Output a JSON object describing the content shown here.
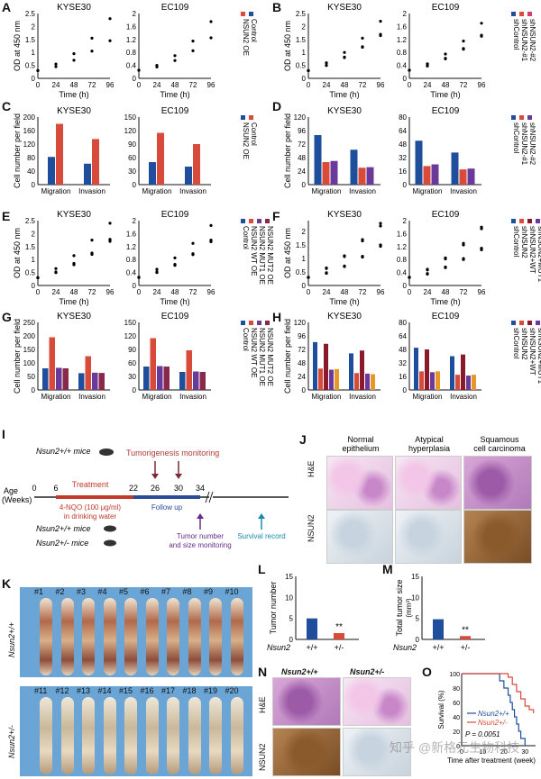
{
  "panels": {
    "A": {
      "letter": "A",
      "left_title": "KYSE30",
      "right_title": "EC109",
      "ylabel": "OD at 450 nm",
      "xlabel": "Time (h)",
      "legend": [
        "NSUN2 OE",
        "Control"
      ],
      "sig": "***"
    },
    "B": {
      "letter": "B",
      "left_title": "KYSE30",
      "right_title": "EC109",
      "ylabel": "OD at 450 nm",
      "xlabel": "Time (h)",
      "legend": [
        "shControl",
        "shNSUN2-#1",
        "shNSUN2-#2"
      ],
      "sig": "***"
    },
    "C": {
      "letter": "C",
      "left_title": "KYSE30",
      "right_title": "EC109",
      "ylabel": "Cell number per field",
      "legend": [
        "NSUN2 OE",
        "Control"
      ],
      "sig": "***"
    },
    "D": {
      "letter": "D",
      "left_title": "KYSE30",
      "right_title": "EC109",
      "ylabel": "Cell number per field",
      "legend": [
        "shControl",
        "shNSUN2-#1",
        "shNSUN2-#2"
      ],
      "sig": "**"
    },
    "E": {
      "letter": "E",
      "left_title": "KYSE30",
      "right_title": "EC109",
      "ylabel": "OD at 450 nm",
      "xlabel": "Time (h)",
      "legend": [
        "Control",
        "NSUN2 WT OE",
        "NSUN2 MUT1 OE",
        "NSUN2 MUT2 OE"
      ],
      "sig": "***"
    },
    "F": {
      "letter": "F",
      "left_title": "KYSE30",
      "right_title": "EC109",
      "ylabel": "OD at 450 nm",
      "xlabel": "Time (h)",
      "legend": [
        "shControl",
        "shNSUN2",
        "shNSUN2+WT",
        "shNSUN2+MUT1",
        "shNSUN2+MUT2"
      ],
      "sig": "***"
    },
    "G": {
      "letter": "G",
      "left_title": "KYSE30",
      "right_title": "EC109",
      "ylabel": "Cell number per field",
      "legend": [
        "Control",
        "NSUN2 WT OE",
        "NSUN2 MUT1 OE",
        "NSUN2 MUT2 OE"
      ],
      "sig": "***"
    },
    "H": {
      "letter": "H",
      "left_title": "KYSE30",
      "right_title": "EC109",
      "ylabel": "Cell number per field",
      "legend": [
        "shControl",
        "shNSUN2",
        "shNSUN2+WT",
        "shNSUN2+MUT1",
        "shNSUN2+MUT2"
      ],
      "sig1": "**",
      "sig2": "***"
    },
    "I": {
      "letter": "I",
      "mice_label": "Nsun2+/+ mice",
      "tumorigenesis": "Tumorigenesis monitoring",
      "age_label": "Age",
      "age_unit": "(Weeks)",
      "ticks": [
        "0",
        "6",
        "22",
        "26",
        "30",
        "34"
      ],
      "treatment": "Treatment",
      "nqo": "4-NQO (100 μg/ml)",
      "nqo2": "in drinking water",
      "follow_up": "Follow up",
      "mice_wt": "Nsun2+/+ mice",
      "mice_het": "Nsun2+/- mice",
      "tumor_monitor": "Tumor number",
      "tumor_monitor2": "and size monitoring",
      "survival": "Survival record"
    },
    "J": {
      "letter": "J",
      "cols": [
        "Normal",
        "epithelium",
        "Atypical",
        "hyperplasia",
        "Squamous",
        "cell carcinoma"
      ],
      "rows": [
        "H&E",
        "NSUN2"
      ]
    },
    "K": {
      "letter": "K",
      "row1_label": "Nsun2+/+",
      "row2_label": "Nsun2+/-",
      "row1": [
        "#1",
        "#2",
        "#3",
        "#4",
        "#5",
        "#6",
        "#7",
        "#8",
        "#9",
        "#10"
      ],
      "row2": [
        "#11",
        "#12",
        "#13",
        "#14",
        "#15",
        "#16",
        "#17",
        "#18",
        "#19",
        "#20"
      ]
    },
    "L": {
      "letter": "L",
      "ylabel": "Tumor number",
      "genotype": "Nsun2",
      "groups": [
        "+/+",
        "+/-"
      ],
      "sig": "**"
    },
    "M": {
      "letter": "M",
      "ylabel": "Total tumor size",
      "yunit": "(mm³)",
      "genotype": "Nsun2",
      "groups": [
        "+/+",
        "+/-"
      ],
      "sig": "**"
    },
    "N": {
      "letter": "N",
      "cols": [
        "Nsun2+/+",
        "Nsun2+/-"
      ],
      "rows": [
        "H&E",
        "NSUN2"
      ]
    },
    "O": {
      "letter": "O",
      "ylabel": "Survival (%)",
      "xlabel": "Time after treatment (week)",
      "legend": [
        "Nsun2+/+",
        "Nsun2+/-"
      ],
      "pvalue": "P = 0.0051",
      "ticks": [
        "0",
        "10",
        "20",
        "30"
      ],
      "yticks": [
        "0",
        "20",
        "40",
        "60",
        "80",
        "100"
      ]
    }
  },
  "watermark": "知乎 @新格元生物科技",
  "chart_data": [
    {
      "panel": "A",
      "type": "line",
      "title": "KYSE30",
      "x": [
        0,
        24,
        48,
        72,
        96
      ],
      "xlabel": "Time (h)",
      "ylabel": "OD at 450 nm",
      "ylim": [
        0,
        2.5
      ],
      "series": [
        {
          "name": "NSUN2 OE",
          "values": [
            0.3,
            0.55,
            0.95,
            1.55,
            2.3
          ]
        },
        {
          "name": "Control",
          "values": [
            0.3,
            0.45,
            0.7,
            1.05,
            1.45
          ]
        }
      ]
    },
    {
      "panel": "A",
      "type": "line",
      "title": "EC109",
      "x": [
        0,
        24,
        48,
        72,
        96
      ],
      "xlabel": "Time (h)",
      "ylabel": "OD at 450 nm",
      "ylim": [
        0,
        2
      ],
      "series": [
        {
          "name": "NSUN2 OE",
          "values": [
            0.25,
            0.4,
            0.7,
            1.15,
            1.75
          ]
        },
        {
          "name": "Control",
          "values": [
            0.25,
            0.35,
            0.55,
            0.85,
            1.25
          ]
        }
      ]
    },
    {
      "panel": "B",
      "type": "line",
      "title": "KYSE30",
      "x": [
        0,
        24,
        48,
        72,
        96
      ],
      "ylim": [
        0,
        2.5
      ],
      "series": [
        {
          "name": "shControl",
          "values": [
            0.3,
            0.6,
            1.0,
            1.55,
            2.2
          ]
        },
        {
          "name": "shNSUN2-#1",
          "values": [
            0.3,
            0.5,
            0.8,
            1.2,
            1.65
          ]
        },
        {
          "name": "shNSUN2-#2",
          "values": [
            0.3,
            0.5,
            0.82,
            1.22,
            1.7
          ]
        }
      ]
    },
    {
      "panel": "B",
      "type": "line",
      "title": "EC109",
      "x": [
        0,
        24,
        48,
        72,
        96
      ],
      "ylim": [
        0,
        2
      ],
      "series": [
        {
          "name": "shControl",
          "values": [
            0.25,
            0.45,
            0.75,
            1.15,
            1.7
          ]
        },
        {
          "name": "shNSUN2-#1",
          "values": [
            0.25,
            0.38,
            0.6,
            0.9,
            1.3
          ]
        },
        {
          "name": "shNSUN2-#2",
          "values": [
            0.25,
            0.4,
            0.62,
            0.92,
            1.33
          ]
        }
      ]
    },
    {
      "panel": "C",
      "type": "bar",
      "title": "KYSE30",
      "categories": [
        "Migration",
        "Invasion"
      ],
      "ylim": [
        0,
        200
      ],
      "series": [
        {
          "name": "Control",
          "values": [
            82,
            62
          ]
        },
        {
          "name": "NSUN2 OE",
          "values": [
            180,
            135
          ]
        }
      ]
    },
    {
      "panel": "C",
      "type": "bar",
      "title": "EC109",
      "categories": [
        "Migration",
        "Invasion"
      ],
      "ylim": [
        0,
        150
      ],
      "series": [
        {
          "name": "Control",
          "values": [
            50,
            40
          ]
        },
        {
          "name": "NSUN2 OE",
          "values": [
            115,
            90
          ]
        }
      ]
    },
    {
      "panel": "D",
      "type": "bar",
      "title": "KYSE30",
      "categories": [
        "Migration",
        "Invasion"
      ],
      "ylim": [
        0,
        120
      ],
      "series": [
        {
          "name": "shControl",
          "values": [
            88,
            62
          ]
        },
        {
          "name": "shNSUN2-#1",
          "values": [
            40,
            30
          ]
        },
        {
          "name": "shNSUN2-#2",
          "values": [
            42,
            31
          ]
        }
      ]
    },
    {
      "panel": "D",
      "type": "bar",
      "title": "EC109",
      "categories": [
        "Migration",
        "Invasion"
      ],
      "ylim": [
        0,
        80
      ],
      "series": [
        {
          "name": "shControl",
          "values": [
            52,
            38
          ]
        },
        {
          "name": "shNSUN2-#1",
          "values": [
            22,
            18
          ]
        },
        {
          "name": "shNSUN2-#2",
          "values": [
            24,
            19
          ]
        }
      ]
    },
    {
      "panel": "E",
      "type": "line",
      "title": "KYSE30",
      "x": [
        0,
        24,
        48,
        72,
        96
      ],
      "ylim": [
        0,
        2.5
      ],
      "series": [
        {
          "name": "Control",
          "values": [
            0.3,
            0.5,
            0.8,
            1.2,
            1.7
          ]
        },
        {
          "name": "NSUN2 WT OE",
          "values": [
            0.3,
            0.65,
            1.15,
            1.75,
            2.4
          ]
        },
        {
          "name": "NSUN2 MUT1 OE",
          "values": [
            0.3,
            0.52,
            0.85,
            1.25,
            1.78
          ]
        },
        {
          "name": "NSUN2 MUT2 OE",
          "values": [
            0.3,
            0.5,
            0.82,
            1.22,
            1.75
          ]
        }
      ]
    },
    {
      "panel": "E",
      "type": "line",
      "title": "EC109",
      "x": [
        0,
        24,
        48,
        72,
        96
      ],
      "ylim": [
        0,
        2
      ],
      "series": [
        {
          "name": "Control",
          "values": [
            0.25,
            0.4,
            0.62,
            0.95,
            1.35
          ]
        },
        {
          "name": "NSUN2 WT OE",
          "values": [
            0.25,
            0.5,
            0.85,
            1.3,
            1.85
          ]
        },
        {
          "name": "NSUN2 MUT1 OE",
          "values": [
            0.25,
            0.42,
            0.65,
            0.98,
            1.4
          ]
        },
        {
          "name": "NSUN2 MUT2 OE",
          "values": [
            0.25,
            0.41,
            0.63,
            0.97,
            1.38
          ]
        }
      ]
    },
    {
      "panel": "F",
      "type": "line",
      "title": "KYSE30",
      "x": [
        0,
        24,
        48,
        72,
        96
      ],
      "ylim": [
        0,
        2.4
      ],
      "series": [
        {
          "name": "shControl",
          "values": [
            0.3,
            0.65,
            1.1,
            1.7,
            2.3
          ]
        },
        {
          "name": "shNSUN2",
          "values": [
            0.3,
            0.45,
            0.7,
            1.05,
            1.45
          ]
        },
        {
          "name": "shNSUN2+WT",
          "values": [
            0.3,
            0.63,
            1.07,
            1.65,
            2.2
          ]
        },
        {
          "name": "shNSUN2+MUT1",
          "values": [
            0.3,
            0.47,
            0.72,
            1.08,
            1.5
          ]
        },
        {
          "name": "shNSUN2+MUT2",
          "values": [
            0.3,
            0.46,
            0.71,
            1.06,
            1.48
          ]
        }
      ]
    },
    {
      "panel": "F",
      "type": "line",
      "title": "EC109",
      "x": [
        0,
        24,
        48,
        72,
        96
      ],
      "ylim": [
        0,
        2
      ],
      "series": [
        {
          "name": "shControl",
          "values": [
            0.25,
            0.5,
            0.85,
            1.3,
            1.8
          ]
        },
        {
          "name": "shNSUN2",
          "values": [
            0.25,
            0.35,
            0.55,
            0.8,
            1.1
          ]
        },
        {
          "name": "shNSUN2+WT",
          "values": [
            0.25,
            0.48,
            0.82,
            1.25,
            1.75
          ]
        },
        {
          "name": "shNSUN2+MUT1",
          "values": [
            0.25,
            0.37,
            0.57,
            0.83,
            1.15
          ]
        },
        {
          "name": "shNSUN2+MUT2",
          "values": [
            0.25,
            0.36,
            0.56,
            0.82,
            1.13
          ]
        }
      ]
    },
    {
      "panel": "G",
      "type": "bar",
      "title": "KYSE30",
      "categories": [
        "Migration",
        "Invasion"
      ],
      "ylim": [
        0,
        250
      ],
      "series": [
        {
          "name": "Control",
          "values": [
            80,
            62
          ]
        },
        {
          "name": "NSUN2 WT OE",
          "values": [
            195,
            125
          ]
        },
        {
          "name": "NSUN2 MUT1 OE",
          "values": [
            82,
            64
          ]
        },
        {
          "name": "NSUN2 MUT2 OE",
          "values": [
            80,
            63
          ]
        }
      ]
    },
    {
      "panel": "G",
      "type": "bar",
      "title": "EC109",
      "categories": [
        "Migration",
        "Invasion"
      ],
      "ylim": [
        0,
        150
      ],
      "series": [
        {
          "name": "Control",
          "values": [
            52,
            40
          ]
        },
        {
          "name": "NSUN2 WT OE",
          "values": [
            115,
            88
          ]
        },
        {
          "name": "NSUN2 MUT1 OE",
          "values": [
            53,
            41
          ]
        },
        {
          "name": "NSUN2 MUT2 OE",
          "values": [
            52,
            40
          ]
        }
      ]
    },
    {
      "panel": "H",
      "type": "bar",
      "title": "KYSE30",
      "categories": [
        "Migration",
        "Invasion"
      ],
      "ylim": [
        0,
        120
      ],
      "series": [
        {
          "name": "shControl",
          "values": [
            85,
            65
          ]
        },
        {
          "name": "shNSUN2",
          "values": [
            38,
            30
          ]
        },
        {
          "name": "shNSUN2+WT",
          "values": [
            82,
            70
          ]
        },
        {
          "name": "shNSUN2+MUT1",
          "values": [
            36,
            29
          ]
        },
        {
          "name": "shNSUN2+MUT2",
          "values": [
            37,
            28
          ]
        }
      ]
    },
    {
      "panel": "H",
      "type": "bar",
      "title": "EC109",
      "categories": [
        "Migration",
        "Invasion"
      ],
      "ylim": [
        0,
        80
      ],
      "series": [
        {
          "name": "shControl",
          "values": [
            50,
            40
          ]
        },
        {
          "name": "shNSUN2",
          "values": [
            22,
            18
          ]
        },
        {
          "name": "shNSUN2+WT",
          "values": [
            48,
            42
          ]
        },
        {
          "name": "shNSUN2+MUT1",
          "values": [
            21,
            17
          ]
        },
        {
          "name": "shNSUN2+MUT2",
          "values": [
            22,
            18
          ]
        }
      ]
    },
    {
      "panel": "L",
      "type": "bar",
      "categories": [
        "+/+",
        "+/-"
      ],
      "ylabel": "Tumor number",
      "ylim": [
        0,
        15
      ],
      "values": [
        5,
        1.5
      ]
    },
    {
      "panel": "M",
      "type": "bar",
      "categories": [
        "+/+",
        "+/-"
      ],
      "ylabel": "Total tumor size (mm³)",
      "ylim": [
        0,
        15
      ],
      "values": [
        4.8,
        0.8
      ]
    },
    {
      "panel": "O",
      "type": "line",
      "xlabel": "Time after treatment (week)",
      "ylabel": "Survival (%)",
      "ylim": [
        0,
        100
      ],
      "xlim": [
        0,
        35
      ],
      "series": [
        {
          "name": "Nsun2+/+",
          "x": [
            0,
            18,
            20,
            22,
            23,
            24,
            25,
            26,
            27,
            28,
            30
          ],
          "values": [
            100,
            90,
            80,
            70,
            60,
            50,
            40,
            30,
            20,
            10,
            0
          ]
        },
        {
          "name": "Nsun2+/-",
          "x": [
            0,
            22,
            24,
            26,
            28,
            30,
            32,
            34
          ],
          "values": [
            100,
            95,
            85,
            75,
            65,
            55,
            50,
            45
          ]
        }
      ]
    }
  ]
}
